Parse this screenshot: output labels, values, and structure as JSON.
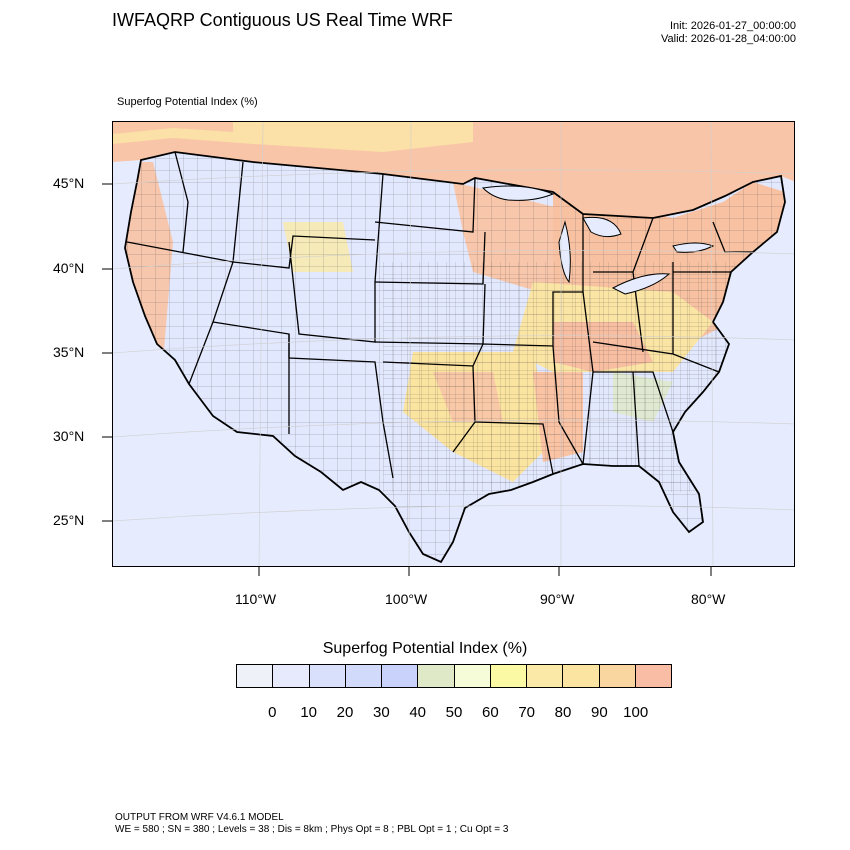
{
  "header": {
    "title": "IWFAQRP Contiguous US Real Time WRF",
    "init": "Init: 2026-01-27_00:00:00",
    "valid": "Valid: 2026-01-28_04:00:00"
  },
  "map": {
    "field_label": "Superfog Potential Index   (%)",
    "lat_labels": [
      "45°N",
      "40°N",
      "35°N",
      "30°N",
      "25°N"
    ],
    "lon_labels": [
      "110°W",
      "100°W",
      "90°W",
      "80°W"
    ],
    "colors": {
      "ocean_background": "#e6ecfd",
      "low_index": "#e2e8fd",
      "mid_index": "#fbe9a4",
      "high_index": "#f9c7a6",
      "borders": "#000000"
    }
  },
  "colorbar": {
    "title": "Superfog Potential Index  (%)",
    "colors": [
      "#eef1f8",
      "#e6eafc",
      "#d8e0fc",
      "#d2dafc",
      "#c9d2fb",
      "#dfe9c7",
      "#f6fcd8",
      "#fbf9a4",
      "#fbeaa7",
      "#fbe4a2",
      "#f9d59f",
      "#f9bda6"
    ],
    "ticks": [
      "0",
      "10",
      "20",
      "30",
      "40",
      "50",
      "60",
      "70",
      "80",
      "90",
      "100"
    ]
  },
  "footer": {
    "line1": "OUTPUT FROM WRF V4.6.1 MODEL",
    "line2": "WE = 580 ; SN = 380 ; Levels = 38 ; Dis = 8km ; Phys Opt = 8 ; PBL Opt = 1 ; Cu Opt = 3"
  }
}
